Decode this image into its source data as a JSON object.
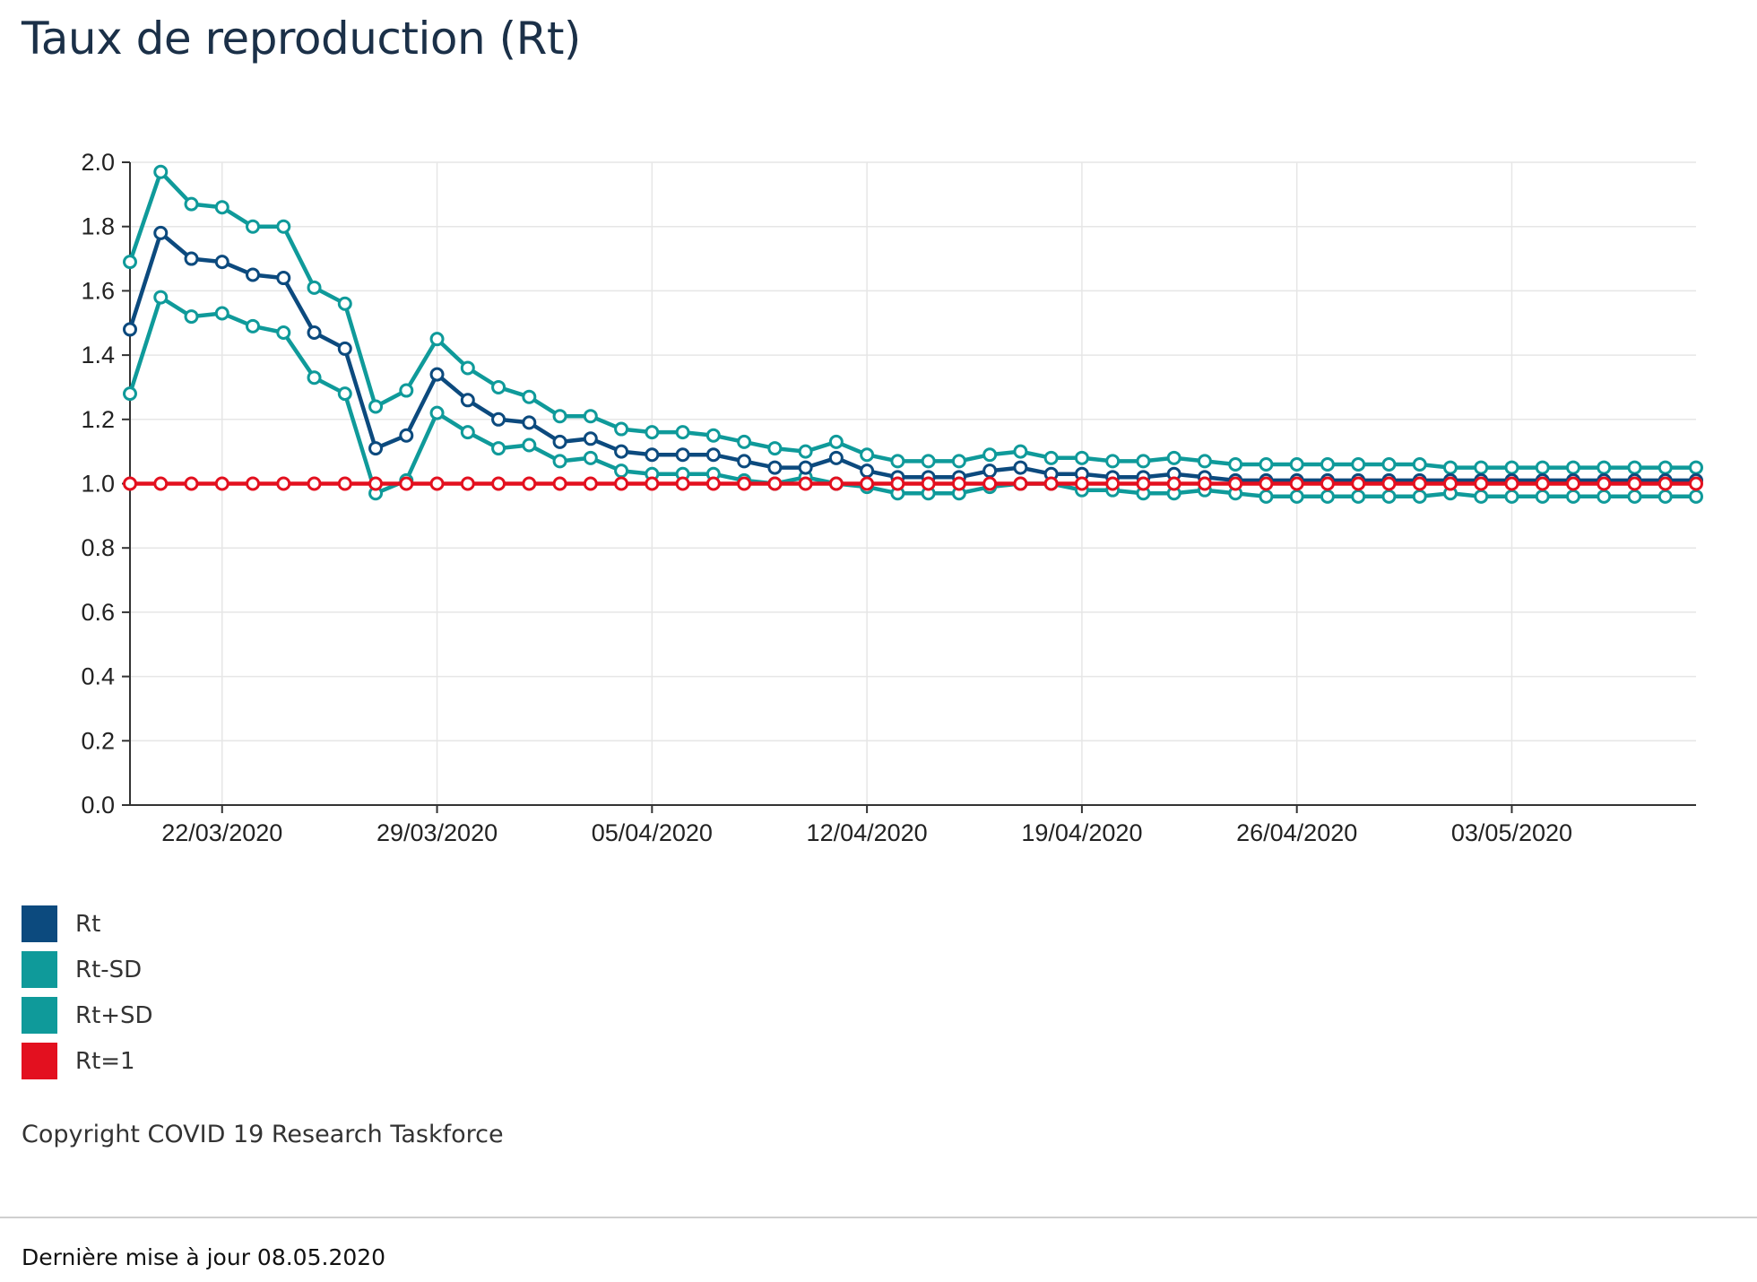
{
  "title": "Taux de reproduction (Rt)",
  "chart_data": {
    "type": "line",
    "x": [
      "19/03/2020",
      "20/03/2020",
      "21/03/2020",
      "22/03/2020",
      "23/03/2020",
      "24/03/2020",
      "25/03/2020",
      "26/03/2020",
      "27/03/2020",
      "28/03/2020",
      "29/03/2020",
      "30/03/2020",
      "31/03/2020",
      "01/04/2020",
      "02/04/2020",
      "03/04/2020",
      "04/04/2020",
      "05/04/2020",
      "06/04/2020",
      "07/04/2020",
      "08/04/2020",
      "09/04/2020",
      "10/04/2020",
      "11/04/2020",
      "12/04/2020",
      "13/04/2020",
      "14/04/2020",
      "15/04/2020",
      "16/04/2020",
      "17/04/2020",
      "18/04/2020",
      "19/04/2020",
      "20/04/2020",
      "21/04/2020",
      "22/04/2020",
      "23/04/2020",
      "24/04/2020",
      "25/04/2020",
      "26/04/2020",
      "27/04/2020",
      "28/04/2020",
      "29/04/2020",
      "30/04/2020",
      "01/05/2020",
      "02/05/2020",
      "03/05/2020",
      "04/05/2020",
      "05/05/2020",
      "06/05/2020",
      "07/05/2020",
      "08/05/2020",
      "09/05/2020"
    ],
    "x_ticks": [
      "22/03/2020",
      "29/03/2020",
      "05/04/2020",
      "12/04/2020",
      "19/04/2020",
      "26/04/2020",
      "03/05/2020"
    ],
    "y_ticks": [
      "0.0",
      "0.2",
      "0.4",
      "0.6",
      "0.8",
      "1.0",
      "1.2",
      "1.4",
      "1.6",
      "1.8",
      "2.0"
    ],
    "ylim": [
      0,
      2.0
    ],
    "grid": true,
    "legend_position": "bottom-left",
    "series": [
      {
        "name": "Rt-SD",
        "color": "#0f9a9a",
        "values": [
          1.28,
          1.58,
          1.52,
          1.53,
          1.49,
          1.47,
          1.33,
          1.28,
          0.97,
          1.01,
          1.22,
          1.16,
          1.11,
          1.12,
          1.07,
          1.08,
          1.04,
          1.03,
          1.03,
          1.03,
          1.01,
          1.0,
          1.02,
          1.0,
          0.99,
          0.97,
          0.97,
          0.97,
          0.99,
          1.0,
          1.0,
          0.98,
          0.98,
          0.97,
          0.97,
          0.98,
          0.97,
          0.96,
          0.96,
          0.96,
          0.96,
          0.96,
          0.96,
          0.97,
          0.96,
          0.96,
          0.96,
          0.96,
          0.96,
          0.96,
          0.96,
          0.96
        ]
      },
      {
        "name": "Rt+SD",
        "color": "#0f9a9a",
        "values": [
          1.69,
          1.97,
          1.87,
          1.86,
          1.8,
          1.8,
          1.61,
          1.56,
          1.24,
          1.29,
          1.45,
          1.36,
          1.3,
          1.27,
          1.21,
          1.21,
          1.17,
          1.16,
          1.16,
          1.15,
          1.13,
          1.11,
          1.1,
          1.13,
          1.09,
          1.07,
          1.07,
          1.07,
          1.09,
          1.1,
          1.08,
          1.08,
          1.07,
          1.07,
          1.08,
          1.07,
          1.06,
          1.06,
          1.06,
          1.06,
          1.06,
          1.06,
          1.06,
          1.05,
          1.05,
          1.05,
          1.05,
          1.05,
          1.05,
          1.05,
          1.05,
          1.05
        ]
      },
      {
        "name": "Rt",
        "color": "#0c4a7e",
        "values": [
          1.48,
          1.78,
          1.7,
          1.69,
          1.65,
          1.64,
          1.47,
          1.42,
          1.11,
          1.15,
          1.34,
          1.26,
          1.2,
          1.19,
          1.13,
          1.14,
          1.1,
          1.09,
          1.09,
          1.09,
          1.07,
          1.05,
          1.05,
          1.08,
          1.04,
          1.02,
          1.02,
          1.02,
          1.04,
          1.05,
          1.03,
          1.03,
          1.02,
          1.02,
          1.03,
          1.02,
          1.01,
          1.01,
          1.01,
          1.01,
          1.01,
          1.01,
          1.01,
          1.01,
          1.01,
          1.01,
          1.01,
          1.01,
          1.01,
          1.01,
          1.01,
          1.01
        ]
      },
      {
        "name": "Rt=1",
        "color": "#e3101f",
        "values": [
          1,
          1,
          1,
          1,
          1,
          1,
          1,
          1,
          1,
          1,
          1,
          1,
          1,
          1,
          1,
          1,
          1,
          1,
          1,
          1,
          1,
          1,
          1,
          1,
          1,
          1,
          1,
          1,
          1,
          1,
          1,
          1,
          1,
          1,
          1,
          1,
          1,
          1,
          1,
          1,
          1,
          1,
          1,
          1,
          1,
          1,
          1,
          1,
          1,
          1,
          1,
          1
        ]
      }
    ]
  },
  "legend": [
    {
      "label": "Rt",
      "color": "#0c4a7e"
    },
    {
      "label": "Rt-SD",
      "color": "#0f9a9a"
    },
    {
      "label": "Rt+SD",
      "color": "#0f9a9a"
    },
    {
      "label": "Rt=1",
      "color": "#e3101f"
    }
  ],
  "copyright": "Copyright COVID 19 Research Taskforce",
  "last_update": "Dernière mise à jour 08.05.2020"
}
